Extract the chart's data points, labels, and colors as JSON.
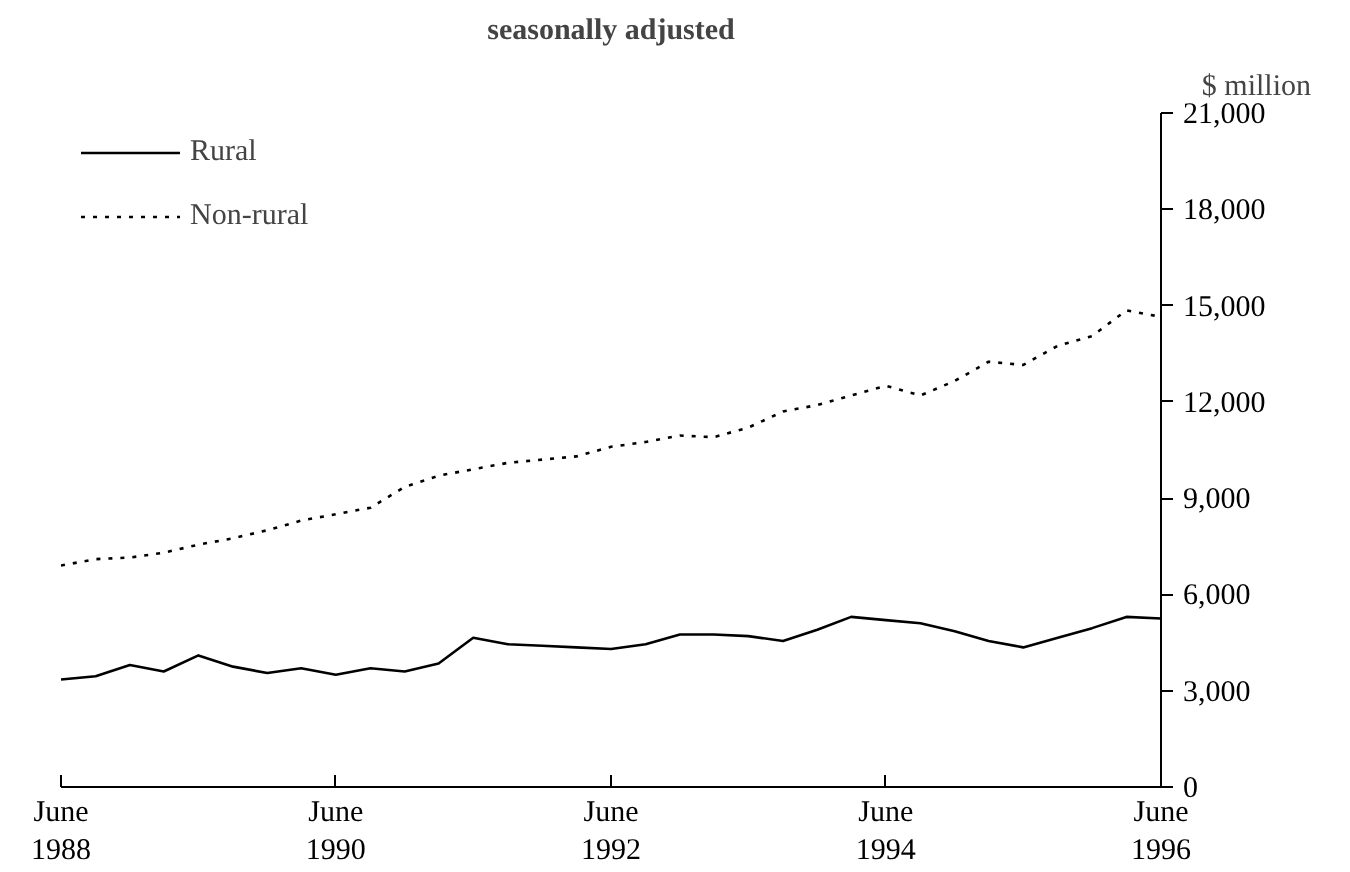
{
  "chart_data": {
    "type": "line",
    "title": "seasonally adjusted",
    "ylabel": "$ million",
    "x": [
      "1988-06",
      "1988-09",
      "1988-12",
      "1989-03",
      "1989-06",
      "1989-09",
      "1989-12",
      "1990-03",
      "1990-06",
      "1990-09",
      "1990-12",
      "1991-03",
      "1991-06",
      "1991-09",
      "1991-12",
      "1992-03",
      "1992-06",
      "1992-09",
      "1992-12",
      "1993-03",
      "1993-06",
      "1993-09",
      "1993-12",
      "1994-03",
      "1994-06",
      "1994-09",
      "1994-12",
      "1995-03",
      "1995-06",
      "1995-09",
      "1995-12",
      "1996-03",
      "1996-06"
    ],
    "series": [
      {
        "name": "Rural",
        "color": "#000000",
        "line_style": "solid",
        "values": [
          3350,
          3450,
          3800,
          3600,
          4100,
          3750,
          3550,
          3700,
          3500,
          3700,
          3600,
          3850,
          4650,
          4450,
          4400,
          4350,
          4300,
          4450,
          4750,
          4750,
          4700,
          4550,
          4900,
          5300,
          5200,
          5100,
          4850,
          4550,
          4350,
          4650,
          4950,
          5300,
          5250
        ]
      },
      {
        "name": "Non-rural",
        "color": "#000000",
        "line_style": "dotted",
        "values": [
          6900,
          7100,
          7150,
          7300,
          7550,
          7750,
          8000,
          8300,
          8500,
          8700,
          9350,
          9700,
          9900,
          10100,
          10200,
          10300,
          10600,
          10750,
          10950,
          10900,
          11200,
          11700,
          11900,
          12200,
          12500,
          12200,
          12650,
          13250,
          13150,
          13750,
          14050,
          14850,
          14650
        ]
      }
    ],
    "xlim": [
      "1988-06",
      "1996-06"
    ],
    "xticks": [
      {
        "value": "1988-06",
        "label": "June\n1988"
      },
      {
        "value": "1990-06",
        "label": "June\n1990"
      },
      {
        "value": "1992-06",
        "label": "June\n1992"
      },
      {
        "value": "1994-06",
        "label": "June\n1994"
      },
      {
        "value": "1996-06",
        "label": "June\n1996"
      }
    ],
    "ylim": [
      0,
      21000
    ],
    "yticks": [
      0,
      {
        "value": 3000,
        "label": "3,000"
      },
      {
        "value": 6000,
        "label": "6,000"
      },
      {
        "value": 9000,
        "label": "9,000"
      },
      {
        "value": 12000,
        "label": "12,000"
      },
      {
        "value": 15000,
        "label": "15,000"
      },
      {
        "value": 18000,
        "label": "18,000"
      },
      {
        "value": 21000,
        "label": "21,000"
      }
    ],
    "grid": false,
    "legend": "top left"
  }
}
